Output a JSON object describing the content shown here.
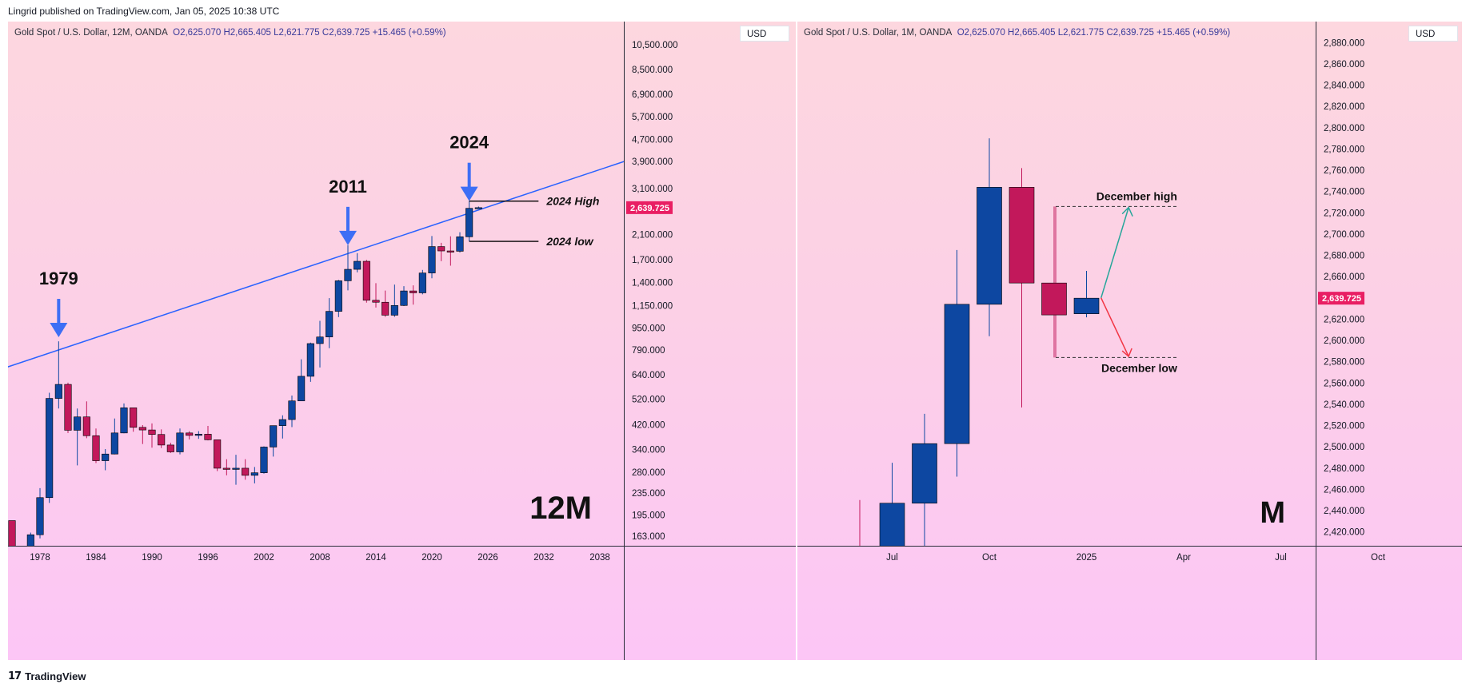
{
  "header": {
    "published": "Lingrid published on TradingView.com, Jan 05, 2025 10:38 UTC"
  },
  "footer": {
    "logo_glyph": "17",
    "brand": "TradingView"
  },
  "colors": {
    "bull": "#0d47a1",
    "bear": "#c2185b",
    "trend": "#2962ff",
    "arrow": "#3d6ef5",
    "price_badge": "#e91e63",
    "up_arrow": "#26a69a",
    "down_arrow": "#f23645"
  },
  "chart_data": [
    {
      "type": "candlestick",
      "name": "yearly",
      "legend": {
        "symbol": "Gold Spot / U.S. Dollar, 12M, OANDA",
        "open": "O2,625.070",
        "high": "H2,665.405",
        "low": "L2,621.775",
        "close": "C2,639.725",
        "change": "+15.465 (+0.59%)"
      },
      "currency": "USD",
      "scale": "log",
      "yticks": [
        163,
        195,
        235,
        280,
        340,
        420,
        520,
        640,
        790,
        950,
        1150,
        1400,
        1700,
        2100,
        3100,
        3900,
        4700,
        5700,
        6900,
        8500,
        10500
      ],
      "ytick_labels": [
        "163.000",
        "195.000",
        "235.000",
        "280.000",
        "340.000",
        "420.000",
        "520.000",
        "640.000",
        "790.000",
        "950.000",
        "1,150.000",
        "1,400.000",
        "1,700.000",
        "2,100.000",
        "3,100.000",
        "3,900.000",
        "4,700.000",
        "5,700.000",
        "6,900.000",
        "8,500.000",
        "10,500.000"
      ],
      "xticks": [
        "1978",
        "1984",
        "1990",
        "1996",
        "2002",
        "2008",
        "2014",
        "2020",
        "2026",
        "2032",
        "2038"
      ],
      "xtick_years": [
        1978,
        1984,
        1990,
        1996,
        2002,
        2008,
        2014,
        2020,
        2026,
        2032,
        2038
      ],
      "last_price_label": "2,639.725",
      "last_price": 2639.725,
      "watermark": "12M",
      "candles": [
        {
          "t": 1975,
          "o": 186,
          "h": 186,
          "l": 128,
          "c": 140
        },
        {
          "t": 1976,
          "o": 140,
          "h": 142,
          "l": 103,
          "c": 135
        },
        {
          "t": 1977,
          "o": 135,
          "h": 168,
          "l": 130,
          "c": 165
        },
        {
          "t": 1978,
          "o": 165,
          "h": 245,
          "l": 160,
          "c": 226
        },
        {
          "t": 1979,
          "o": 226,
          "h": 550,
          "l": 216,
          "c": 524
        },
        {
          "t": 1980,
          "o": 524,
          "h": 850,
          "l": 481,
          "c": 590
        },
        {
          "t": 1981,
          "o": 590,
          "h": 599,
          "l": 391,
          "c": 400
        },
        {
          "t": 1982,
          "o": 400,
          "h": 481,
          "l": 297,
          "c": 448
        },
        {
          "t": 1983,
          "o": 448,
          "h": 511,
          "l": 374,
          "c": 382
        },
        {
          "t": 1984,
          "o": 382,
          "h": 406,
          "l": 303,
          "c": 309
        },
        {
          "t": 1985,
          "o": 309,
          "h": 341,
          "l": 285,
          "c": 327
        },
        {
          "t": 1986,
          "o": 327,
          "h": 442,
          "l": 326,
          "c": 391
        },
        {
          "t": 1987,
          "o": 391,
          "h": 502,
          "l": 390,
          "c": 484
        },
        {
          "t": 1988,
          "o": 484,
          "h": 485,
          "l": 395,
          "c": 410
        },
        {
          "t": 1989,
          "o": 410,
          "h": 418,
          "l": 356,
          "c": 401
        },
        {
          "t": 1990,
          "o": 401,
          "h": 424,
          "l": 345,
          "c": 386
        },
        {
          "t": 1991,
          "o": 386,
          "h": 403,
          "l": 344,
          "c": 353
        },
        {
          "t": 1992,
          "o": 353,
          "h": 360,
          "l": 330,
          "c": 333
        },
        {
          "t": 1993,
          "o": 333,
          "h": 406,
          "l": 326,
          "c": 391
        },
        {
          "t": 1994,
          "o": 391,
          "h": 397,
          "l": 370,
          "c": 383
        },
        {
          "t": 1995,
          "o": 383,
          "h": 397,
          "l": 372,
          "c": 387
        },
        {
          "t": 1996,
          "o": 387,
          "h": 415,
          "l": 367,
          "c": 369
        },
        {
          "t": 1997,
          "o": 369,
          "h": 367,
          "l": 283,
          "c": 290
        },
        {
          "t": 1998,
          "o": 290,
          "h": 313,
          "l": 273,
          "c": 288
        },
        {
          "t": 1999,
          "o": 288,
          "h": 325,
          "l": 252,
          "c": 290
        },
        {
          "t": 2000,
          "o": 290,
          "h": 313,
          "l": 263,
          "c": 273
        },
        {
          "t": 2001,
          "o": 273,
          "h": 293,
          "l": 255,
          "c": 279
        },
        {
          "t": 2002,
          "o": 279,
          "h": 349,
          "l": 277,
          "c": 347
        },
        {
          "t": 2003,
          "o": 347,
          "h": 416,
          "l": 320,
          "c": 416
        },
        {
          "t": 2004,
          "o": 416,
          "h": 454,
          "l": 373,
          "c": 438
        },
        {
          "t": 2005,
          "o": 438,
          "h": 537,
          "l": 411,
          "c": 513
        },
        {
          "t": 2006,
          "o": 513,
          "h": 730,
          "l": 524,
          "c": 632
        },
        {
          "t": 2007,
          "o": 632,
          "h": 841,
          "l": 603,
          "c": 834
        },
        {
          "t": 2008,
          "o": 834,
          "h": 1011,
          "l": 681,
          "c": 882
        },
        {
          "t": 2009,
          "o": 882,
          "h": 1226,
          "l": 802,
          "c": 1096
        },
        {
          "t": 2010,
          "o": 1096,
          "h": 1431,
          "l": 1044,
          "c": 1420
        },
        {
          "t": 2011,
          "o": 1420,
          "h": 1920,
          "l": 1309,
          "c": 1565
        },
        {
          "t": 2012,
          "o": 1565,
          "h": 1795,
          "l": 1526,
          "c": 1675
        },
        {
          "t": 2013,
          "o": 1675,
          "h": 1696,
          "l": 1180,
          "c": 1204
        },
        {
          "t": 2014,
          "o": 1204,
          "h": 1392,
          "l": 1132,
          "c": 1184
        },
        {
          "t": 2015,
          "o": 1184,
          "h": 1307,
          "l": 1046,
          "c": 1061
        },
        {
          "t": 2016,
          "o": 1061,
          "h": 1375,
          "l": 1046,
          "c": 1152
        },
        {
          "t": 2017,
          "o": 1152,
          "h": 1357,
          "l": 1146,
          "c": 1303
        },
        {
          "t": 2018,
          "o": 1303,
          "h": 1366,
          "l": 1160,
          "c": 1282
        },
        {
          "t": 2019,
          "o": 1282,
          "h": 1557,
          "l": 1266,
          "c": 1517
        },
        {
          "t": 2020,
          "o": 1517,
          "h": 2075,
          "l": 1451,
          "c": 1898
        },
        {
          "t": 2021,
          "o": 1898,
          "h": 1959,
          "l": 1677,
          "c": 1829
        },
        {
          "t": 2022,
          "o": 1829,
          "h": 2070,
          "l": 1614,
          "c": 1824
        },
        {
          "t": 2023,
          "o": 1824,
          "h": 2144,
          "l": 1804,
          "c": 2062
        },
        {
          "t": 2024,
          "o": 2062,
          "h": 2790,
          "l": 1984,
          "c": 2625
        },
        {
          "t": 2025,
          "o": 2625.07,
          "h": 2665.405,
          "l": 2621.775,
          "c": 2639.725
        }
      ],
      "trendline": [
        {
          "t": 1972,
          "p": 640
        },
        {
          "t": 2042,
          "p": 4050
        }
      ],
      "annotations": [
        {
          "text": "1979",
          "t": 1980,
          "arrow_tip": 880
        },
        {
          "text": "2011",
          "t": 2011,
          "arrow_tip": 1920
        },
        {
          "text": "2024",
          "t": 2024,
          "arrow_tip": 2790
        }
      ],
      "levels": [
        {
          "text": "2024 High",
          "p": 2790,
          "t0": 2024,
          "t1": 2028
        },
        {
          "text": "2024 low",
          "p": 1984,
          "t0": 2024,
          "t1": 2028
        }
      ]
    },
    {
      "type": "candlestick",
      "name": "monthly",
      "legend": {
        "symbol": "Gold Spot / U.S. Dollar, 1M, OANDA",
        "open": "O2,625.070",
        "high": "H2,665.405",
        "low": "L2,621.775",
        "close": "C2,639.725",
        "change": "+15.465 (+0.59%)"
      },
      "currency": "USD",
      "scale": "linear",
      "ylim": [
        2413,
        2893
      ],
      "yticks": [
        2420,
        2440,
        2460,
        2480,
        2500,
        2520,
        2540,
        2560,
        2580,
        2600,
        2620,
        2640,
        2660,
        2680,
        2700,
        2720,
        2740,
        2760,
        2780,
        2800,
        2820,
        2840,
        2860,
        2880
      ],
      "ytick_labels": [
        "2,420.000",
        "2,440.000",
        "2,460.000",
        "2,480.000",
        "2,500.000",
        "2,520.000",
        "2,540.000",
        "2,560.000",
        "2,580.000",
        "2,600.000",
        "2,620.000",
        "2,640.000",
        "2,660.000",
        "2,680.000",
        "2,700.000",
        "2,720.000",
        "2,740.000",
        "2,760.000",
        "2,780.000",
        "2,800.000",
        "2,820.000",
        "2,840.000",
        "2,860.000",
        "2,880.000"
      ],
      "xticks": [
        "Jul",
        "Oct",
        "2025",
        "Apr",
        "Jul",
        "Oct"
      ],
      "xtick_index": [
        1,
        4,
        7,
        10,
        13,
        16
      ],
      "last_price_label": "2,639.725",
      "last_price": 2639.725,
      "watermark": "M",
      "candles": [
        {
          "i": 0,
          "o": 2350,
          "h": 2450,
          "l": 2280,
          "c": 2327
        },
        {
          "i": 1,
          "o": 2327,
          "h": 2485,
          "l": 2320,
          "c": 2447
        },
        {
          "i": 2,
          "o": 2447,
          "h": 2531,
          "l": 2364,
          "c": 2503
        },
        {
          "i": 3,
          "o": 2503,
          "h": 2685,
          "l": 2472,
          "c": 2634
        },
        {
          "i": 4,
          "o": 2634,
          "h": 2790,
          "l": 2604,
          "c": 2744
        },
        {
          "i": 5,
          "o": 2744,
          "h": 2762,
          "l": 2537,
          "c": 2654
        },
        {
          "i": 6,
          "o": 2654,
          "h": 2726,
          "l": 2584,
          "c": 2624
        },
        {
          "i": 7,
          "o": 2625.07,
          "h": 2665.405,
          "l": 2621.775,
          "c": 2639.725
        }
      ],
      "levels": [
        {
          "text": "December high",
          "p": 2726,
          "i0": 6,
          "i1": 9.8
        },
        {
          "text": "December low",
          "p": 2584,
          "i0": 6,
          "i1": 9.8
        }
      ],
      "scenario": {
        "from_i": 7.45,
        "from_p": 2640,
        "to_i": 8.3,
        "up_p": 2725,
        "down_p": 2585
      }
    }
  ]
}
